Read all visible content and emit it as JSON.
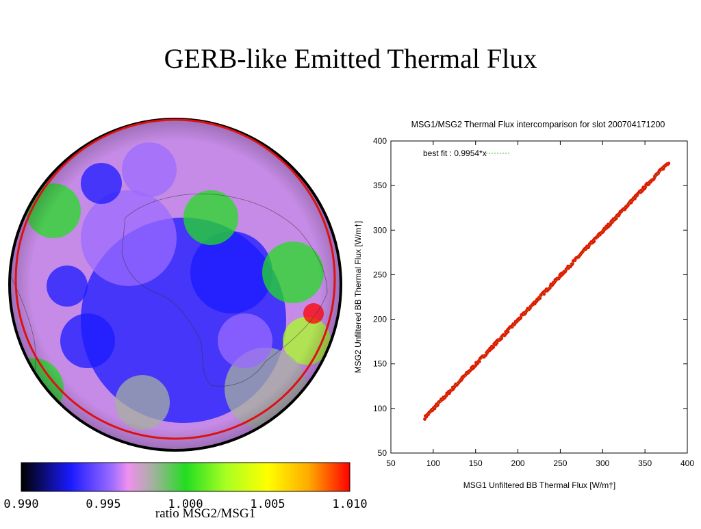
{
  "slide": {
    "title": "GERB-like Emitted Thermal  Flux"
  },
  "colors": {
    "fit_line": "#22cc22",
    "points": "#ee1100",
    "ring": "#dd1111"
  },
  "chart_data": [
    {
      "type": "heatmap",
      "description_kind": "earth-disk-map",
      "colorbar": {
        "min": 0.99,
        "max": 1.01,
        "tick_labels": [
          "0.990",
          "0.995",
          "1.000",
          "1.005",
          "1.010"
        ],
        "tick_values": [
          0.99,
          0.995,
          1.0,
          1.005,
          1.01
        ],
        "label": "ratio MSG2/MSG1",
        "stops": [
          {
            "value": 0.99,
            "color": "#000000"
          },
          {
            "value": 0.993,
            "color": "#1a1aff"
          },
          {
            "value": 0.9955,
            "color": "#9b6bff"
          },
          {
            "value": 0.9965,
            "color": "#f090f0"
          },
          {
            "value": 0.998,
            "color": "#a6b0a0"
          },
          {
            "value": 1.0,
            "color": "#22dd22"
          },
          {
            "value": 1.0025,
            "color": "#aaff22"
          },
          {
            "value": 1.005,
            "color": "#ffff00"
          },
          {
            "value": 1.0075,
            "color": "#ffaa00"
          },
          {
            "value": 1.01,
            "color": "#ff0000"
          }
        ]
      }
    },
    {
      "type": "scatter",
      "title": "MSG1/MSG2 Thermal Flux intercomparison for slot 200704171200",
      "xlabel": "MSG1 Unfiltered BB Thermal Flux [W/m†]",
      "ylabel": "MSG2 Unfiltered BB Thermal Flux [W/m†]",
      "xlim": [
        50,
        400
      ],
      "ylim": [
        50,
        400
      ],
      "x_ticks": [
        50,
        100,
        150,
        200,
        250,
        300,
        350,
        400
      ],
      "y_ticks": [
        50,
        100,
        150,
        200,
        250,
        300,
        350,
        400
      ],
      "legend": {
        "label": "best fit : 0.9954*x",
        "placement": "top-left"
      },
      "fit": {
        "slope": 0.9954
      },
      "series": [
        {
          "x_range": [
            90,
            378
          ],
          "relation": "y ≈ 0.9954*x"
        }
      ]
    }
  ]
}
